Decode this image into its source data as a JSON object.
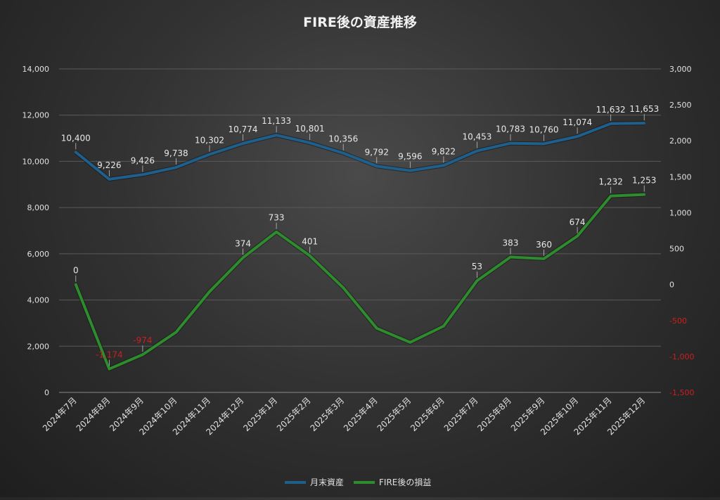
{
  "chart_data": {
    "type": "line",
    "title": "FIRE後の資産推移",
    "categories": [
      "2024年7月",
      "2024年8月",
      "2024年9月",
      "2024年10月",
      "2024年11月",
      "2024年12月",
      "2025年1月",
      "2025年2月",
      "2025年3月",
      "2025年4月",
      "2025年5月",
      "2025年6月",
      "2025年7月",
      "2025年8月",
      "2025年9月",
      "2025年10月",
      "2025年11月",
      "2025年12月"
    ],
    "series": [
      {
        "name": "月末資産",
        "axis": "left",
        "color": "#1f5f8b",
        "values": [
          10400,
          9226,
          9426,
          9738,
          10302,
          10774,
          11133,
          10801,
          10356,
          9792,
          9596,
          9822,
          10453,
          10783,
          10760,
          11074,
          11632,
          11653
        ],
        "labels": [
          "10,400",
          "9,226",
          "9,426",
          "9,738",
          "10,302",
          "10,774",
          "11,133",
          "10,801",
          "10,356",
          "9,792",
          "9,596",
          "9,822",
          "10,453",
          "10,783",
          "10,760",
          "11,074",
          "11,632",
          "11,653"
        ]
      },
      {
        "name": "FIRE後の損益",
        "axis": "right",
        "color": "#2e8b2e",
        "values": [
          0,
          -1174,
          -974,
          -662,
          -98,
          374,
          733,
          401,
          -44,
          -608,
          -804,
          -578,
          53,
          383,
          360,
          674,
          1232,
          1253
        ],
        "labels": [
          "0",
          "-1,174",
          "-974",
          "",
          "",
          "374",
          "733",
          "401",
          "",
          "",
          "",
          "",
          "53",
          "383",
          "360",
          "674",
          "1,232",
          "1,253"
        ]
      }
    ],
    "y_left": {
      "min": 0,
      "max": 14000,
      "ticks": [
        "0",
        "2,000",
        "4,000",
        "6,000",
        "8,000",
        "10,000",
        "12,000",
        "14,000"
      ]
    },
    "y_right": {
      "min": -1500,
      "max": 3000,
      "ticks": [
        "-1,500",
        "-1,000",
        "-500",
        "0",
        "500",
        "1,000",
        "1,500",
        "2,000",
        "2,500",
        "3,000"
      ],
      "negative_color": "#cc1f1f"
    },
    "grid": true,
    "legend_position": "bottom"
  }
}
